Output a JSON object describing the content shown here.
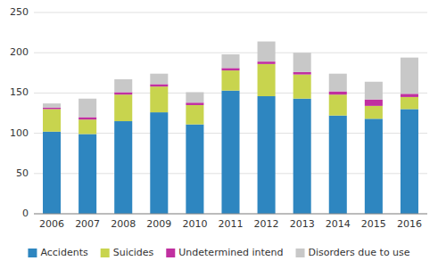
{
  "chart_data": {
    "type": "bar",
    "stacked": true,
    "categories": [
      "2006",
      "2007",
      "2008",
      "2009",
      "2010",
      "2011",
      "2012",
      "2013",
      "2014",
      "2015",
      "2016"
    ],
    "series": [
      {
        "name": "Accidents",
        "color": "#2e86c0",
        "values": [
          102,
          99,
          115,
          126,
          111,
          153,
          146,
          143,
          122,
          118,
          130
        ]
      },
      {
        "name": "Suicides",
        "color": "#c8d44e",
        "values": [
          28,
          18,
          33,
          32,
          24,
          25,
          40,
          30,
          26,
          16,
          15
        ]
      },
      {
        "name": "Undetermined intend",
        "color": "#c030a0",
        "values": [
          2,
          3,
          3,
          3,
          3,
          3,
          3,
          3,
          4,
          8,
          4
        ]
      },
      {
        "name": "Disorders due to use",
        "color": "#c8c8c8",
        "values": [
          5,
          23,
          16,
          13,
          13,
          17,
          25,
          24,
          22,
          22,
          45
        ]
      }
    ],
    "ylim": [
      0,
      250
    ],
    "yticks": [
      0,
      50,
      100,
      150,
      200,
      250
    ],
    "grid": true,
    "legend": "bottom"
  }
}
